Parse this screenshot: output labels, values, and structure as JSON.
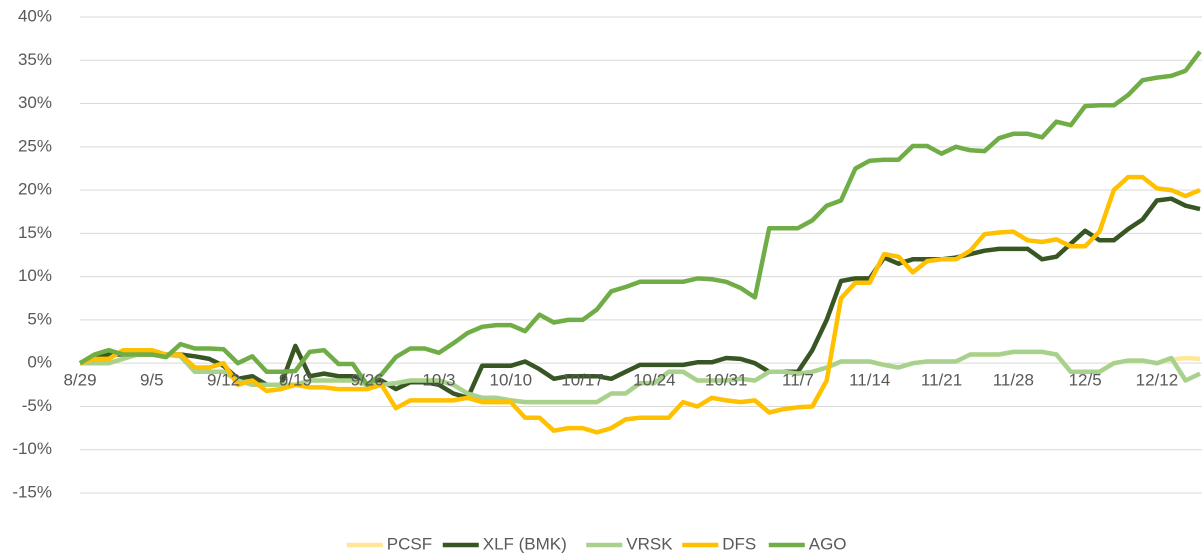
{
  "chart_data": {
    "type": "line",
    "categories": [
      "8/29",
      null,
      null,
      null,
      null,
      "9/5",
      null,
      null,
      null,
      null,
      "9/12",
      null,
      null,
      null,
      null,
      "9/19",
      null,
      null,
      null,
      null,
      "9/26",
      null,
      null,
      null,
      null,
      "10/3",
      null,
      null,
      null,
      null,
      "10/10",
      null,
      null,
      null,
      null,
      "10/17",
      null,
      null,
      null,
      null,
      "10/24",
      null,
      null,
      null,
      null,
      "10/31",
      null,
      null,
      null,
      null,
      "11/7",
      null,
      null,
      null,
      null,
      "11/14",
      null,
      null,
      null,
      null,
      "11/21",
      null,
      null,
      null,
      null,
      "11/28",
      null,
      null,
      null,
      null,
      "12/5",
      null,
      null,
      null,
      null,
      "12/12",
      null,
      null,
      null
    ],
    "series": [
      {
        "name": "PCSF",
        "color": "#ffe699",
        "values": [
          0,
          0,
          0,
          0.5,
          1,
          1,
          1,
          0.8,
          -1,
          -1,
          -1,
          -2,
          -2.5,
          -2.5,
          -2.5,
          -2.5,
          -2,
          -2,
          -2,
          -2,
          -2.5,
          -2.5,
          -2.3,
          -2,
          -2,
          -2,
          -2.5,
          -3.5,
          -4,
          -4,
          -4.3,
          -4.5,
          -4.5,
          -4.5,
          -4.5,
          -4.5,
          -4.5,
          -3.5,
          -3.5,
          -2.3,
          -2.3,
          -1,
          -1,
          -2,
          -2,
          -2,
          -1.8,
          -2,
          -1,
          -1,
          -1.2,
          -1,
          -0.5,
          0.2,
          0.2,
          0.2,
          -0.2,
          -0.5,
          0,
          0.2,
          0.2,
          0.2,
          1,
          1,
          1,
          1.3,
          1.3,
          1.3,
          1,
          -1,
          -1,
          -1,
          0,
          0.3,
          0.3,
          0,
          0.4,
          0.6,
          0.5
        ]
      },
      {
        "name": "XLF (BMK)",
        "color": "#375623",
        "values": [
          0,
          0.8,
          1,
          1,
          1,
          1,
          1,
          1,
          0.8,
          0.5,
          -0.3,
          -1.8,
          -1.5,
          -2.5,
          -2.5,
          2,
          -1.5,
          -1.2,
          -1.5,
          -1.5,
          -2.5,
          -2,
          -3,
          -2.2,
          -2.2,
          -2.5,
          -3.5,
          -4,
          -0.3,
          -0.3,
          -0.3,
          0.2,
          -0.7,
          -1.8,
          -1.5,
          -1.5,
          -1.5,
          -1.8,
          -1,
          -0.2,
          -0.2,
          -0.2,
          -0.2,
          0.1,
          0.1,
          0.6,
          0.5,
          0,
          -1,
          -1,
          -1,
          1.5,
          5,
          9.5,
          9.8,
          9.8,
          12.2,
          11.5,
          12,
          12,
          12,
          12.2,
          12.6,
          13,
          13.2,
          13.2,
          13.2,
          12,
          12.3,
          13.8,
          15.3,
          14.2,
          14.2,
          15.5,
          16.6,
          18.8,
          19,
          18.2,
          17.8
        ]
      },
      {
        "name": "VRSK",
        "color": "#a9d18e",
        "values": [
          0,
          0,
          0,
          0.5,
          1,
          1,
          1,
          0.8,
          -1,
          -1,
          -1,
          -2,
          -2.5,
          -2.5,
          -2.5,
          -2.5,
          -2,
          -2,
          -2,
          -2,
          -2.5,
          -2.5,
          -2.3,
          -2,
          -2,
          -2,
          -2.5,
          -3.5,
          -4,
          -4,
          -4.3,
          -4.5,
          -4.5,
          -4.5,
          -4.5,
          -4.5,
          -4.5,
          -3.5,
          -3.5,
          -2.3,
          -2.3,
          -1,
          -1,
          -2,
          -2,
          -2,
          -1.8,
          -2,
          -1,
          -1,
          -1.2,
          -1,
          -0.5,
          0.2,
          0.2,
          0.2,
          -0.2,
          -0.5,
          0,
          0.2,
          0.2,
          0.2,
          1,
          1,
          1,
          1.3,
          1.3,
          1.3,
          1,
          -1,
          -1,
          -1,
          0,
          0.3,
          0.3,
          0,
          0.6,
          -2,
          -1.2
        ]
      },
      {
        "name": "DFS",
        "color": "#ffc000",
        "values": [
          0,
          0.5,
          0.5,
          1.5,
          1.5,
          1.5,
          1,
          1,
          -0.5,
          -0.5,
          0,
          -2.5,
          -2,
          -3.2,
          -3,
          -2.5,
          -2.8,
          -2.8,
          -3,
          -3,
          -3,
          -2.5,
          -5.2,
          -4.3,
          -4.3,
          -4.3,
          -4.3,
          -4,
          -4.5,
          -4.5,
          -4.5,
          -6.3,
          -6.3,
          -7.8,
          -7.5,
          -7.5,
          -8,
          -7.5,
          -6.5,
          -6.3,
          -6.3,
          -6.3,
          -4.5,
          -5,
          -4,
          -4.3,
          -4.5,
          -4.3,
          -5.7,
          -5.3,
          -5.1,
          -5,
          -2,
          7.5,
          9.3,
          9.3,
          12.6,
          12.3,
          10.5,
          11.8,
          12,
          12,
          13,
          14.9,
          15.1,
          15.2,
          14.2,
          14,
          14.3,
          13.5,
          13.5,
          15.2,
          20,
          21.5,
          21.5,
          20.2,
          20,
          19.3,
          20
        ]
      },
      {
        "name": "AGO",
        "color": "#70ad47",
        "values": [
          0,
          1,
          1.5,
          1,
          1,
          1,
          0.7,
          2.2,
          1.7,
          1.7,
          1.6,
          0,
          0.8,
          -1,
          -1,
          -0.9,
          1.3,
          1.5,
          -0.1,
          -0.1,
          -2.5,
          -1.3,
          0.7,
          1.7,
          1.7,
          1.2,
          2.3,
          3.5,
          4.2,
          4.4,
          4.4,
          3.7,
          5.6,
          4.7,
          5,
          5,
          6.2,
          8.3,
          8.8,
          9.4,
          9.4,
          9.4,
          9.4,
          9.8,
          9.7,
          9.4,
          8.7,
          7.6,
          15.6,
          15.6,
          15.6,
          16.5,
          18.2,
          18.8,
          22.5,
          23.4,
          23.5,
          23.5,
          25.1,
          25.1,
          24.2,
          25,
          24.6,
          24.5,
          26,
          26.5,
          26.5,
          26.1,
          27.9,
          27.5,
          29.7,
          29.8,
          29.8,
          31,
          32.7,
          33,
          33.2,
          33.8,
          36
        ]
      }
    ],
    "ylim": [
      -15,
      40
    ],
    "yticks": [
      {
        "value": -15,
        "label": "-15%"
      },
      {
        "value": -10,
        "label": "-10%"
      },
      {
        "value": -5,
        "label": "-5%"
      },
      {
        "value": 0,
        "label": "0%"
      },
      {
        "value": 5,
        "label": "5%"
      },
      {
        "value": 10,
        "label": "10%"
      },
      {
        "value": 15,
        "label": "15%"
      },
      {
        "value": 20,
        "label": "20%"
      },
      {
        "value": 25,
        "label": "25%"
      },
      {
        "value": 30,
        "label": "30%"
      },
      {
        "value": 35,
        "label": "35%"
      },
      {
        "value": 40,
        "label": "40%"
      }
    ],
    "grid": true,
    "legend": "bottom"
  }
}
